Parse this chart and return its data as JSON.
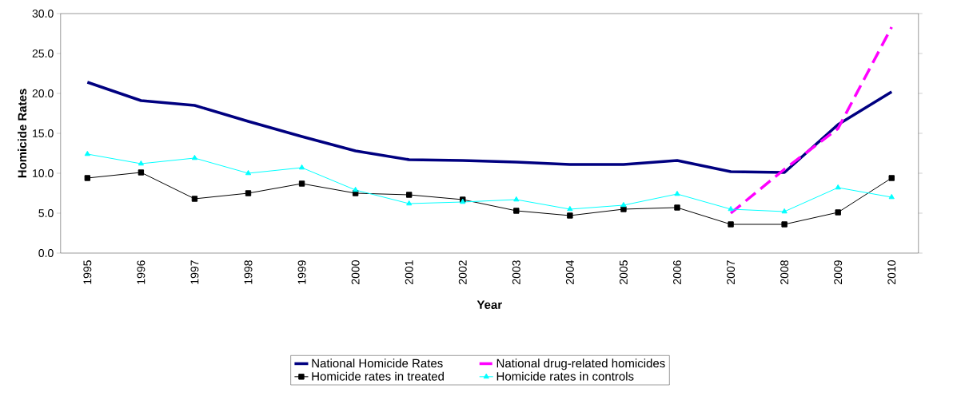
{
  "chart_data": {
    "type": "line",
    "xlabel": "Year",
    "ylabel": "Homicide Rates",
    "legend": "bottom",
    "categories": [
      "1995",
      "1996",
      "1997",
      "1998",
      "1999",
      "2000",
      "2001",
      "2002",
      "2003",
      "2004",
      "2005",
      "2006",
      "2007",
      "2008",
      "2009",
      "2010"
    ],
    "ylim": [
      0,
      30
    ],
    "yticks": [
      {
        "value": 0,
        "label": "0.0"
      },
      {
        "value": 5,
        "label": "5.0"
      },
      {
        "value": 10,
        "label": "10.0"
      },
      {
        "value": 15,
        "label": "15.0"
      },
      {
        "value": 20,
        "label": "20.0"
      },
      {
        "value": 25,
        "label": "25.0"
      },
      {
        "value": 30,
        "label": "30.0"
      }
    ],
    "series": [
      {
        "name": "National Homicide Rates",
        "color": "#000080",
        "marker": "none",
        "line_style": "solid",
        "values": [
          21.4,
          19.1,
          18.5,
          16.5,
          14.6,
          12.8,
          11.7,
          11.6,
          11.4,
          11.1,
          11.1,
          11.6,
          10.2,
          10.1,
          16.1,
          20.2
        ]
      },
      {
        "name": "National drug-related homicides",
        "color": "#ff00ff",
        "marker": "none",
        "line_style": "dashed",
        "values": [
          null,
          null,
          null,
          null,
          null,
          null,
          null,
          null,
          null,
          null,
          null,
          null,
          5.0,
          10.5,
          15.6,
          28.3
        ]
      },
      {
        "name": "Homicide rates in treated",
        "color": "#000000",
        "marker": "square",
        "line_style": "solid",
        "values": [
          9.4,
          10.1,
          6.8,
          7.5,
          8.7,
          7.5,
          7.3,
          6.7,
          5.3,
          4.7,
          5.5,
          5.7,
          3.6,
          3.6,
          5.1,
          9.4
        ]
      },
      {
        "name": "Homicide rates in controls",
        "color": "#00ffff",
        "marker": "triangle",
        "line_style": "solid",
        "values": [
          12.4,
          11.2,
          11.9,
          10.0,
          10.7,
          7.9,
          6.2,
          6.4,
          6.7,
          5.5,
          6.0,
          7.4,
          5.5,
          5.2,
          8.2,
          7.0
        ]
      }
    ]
  }
}
